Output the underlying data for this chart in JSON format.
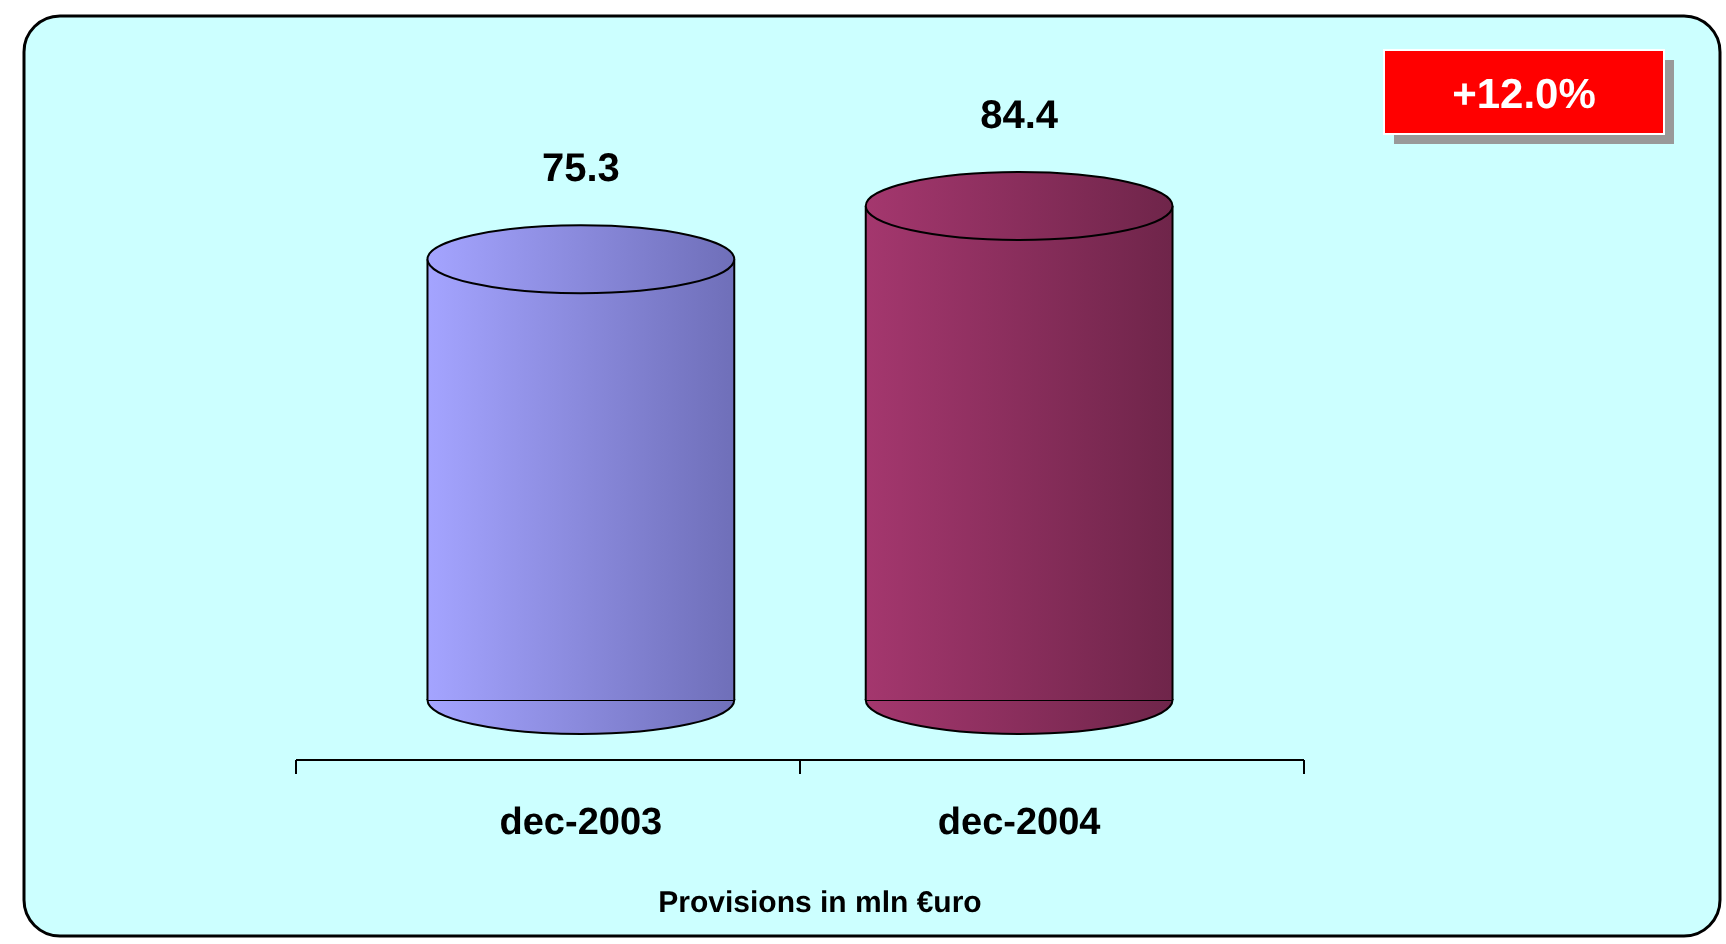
{
  "chart_data": {
    "type": "bar",
    "categories": [
      "dec-2003",
      "dec-2004"
    ],
    "values": [
      75.3,
      84.4
    ],
    "colors": [
      "#9999ff",
      "#993366"
    ],
    "data_labels": true,
    "xlabel": "Provisions in mln €uro",
    "annotations": [
      "+12.0%"
    ]
  }
}
